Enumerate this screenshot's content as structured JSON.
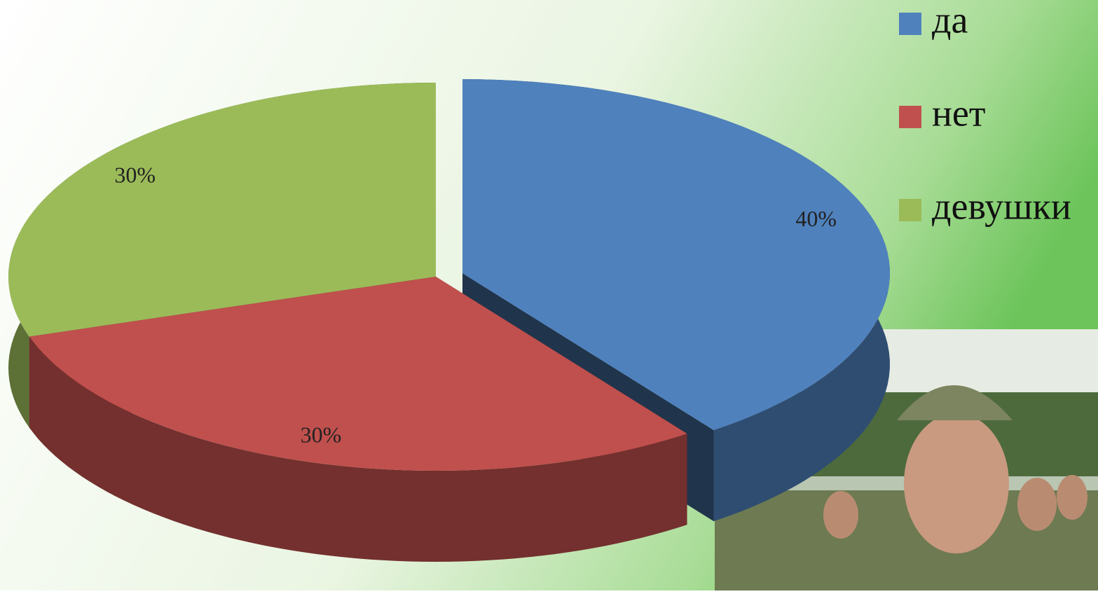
{
  "chart_data": {
    "type": "pie3d",
    "categories": [
      "да",
      "нет",
      "девушки"
    ],
    "values": [
      40,
      30,
      30
    ],
    "value_labels": [
      "40%",
      "30%",
      "30%"
    ],
    "colors": [
      "#4f81bd",
      "#c0504d",
      "#9bbb59"
    ],
    "exploded": [
      true,
      false,
      false
    ],
    "legend": "top-right"
  }
}
